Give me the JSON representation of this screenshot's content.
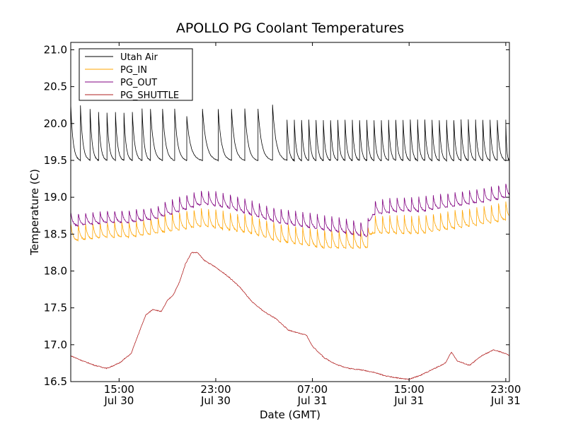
{
  "chart_data": {
    "type": "line",
    "title": "APOLLO PG Coolant Temperatures",
    "xlabel": "Date (GMT)",
    "ylabel": "Temperature (C)",
    "xlim_hours": [
      11.0,
      47.3
    ],
    "ylim": [
      16.5,
      21.1
    ],
    "y_ticks": [
      "16.5",
      "17.0",
      "17.5",
      "18.0",
      "18.5",
      "19.0",
      "19.5",
      "20.0",
      "20.5",
      "21.0"
    ],
    "y_tick_values": [
      16.5,
      17.0,
      17.5,
      18.0,
      18.5,
      19.0,
      19.5,
      20.0,
      20.5,
      21.0
    ],
    "x_ticks": [
      {
        "hour": 15,
        "time": "15:00",
        "date": "Jul 30"
      },
      {
        "hour": 23,
        "time": "23:00",
        "date": "Jul 30"
      },
      {
        "hour": 31,
        "time": "07:00",
        "date": "Jul 31"
      },
      {
        "hour": 39,
        "time": "15:00",
        "date": "Jul 31"
      },
      {
        "hour": 47,
        "time": "23:00",
        "date": "Jul 31"
      }
    ],
    "legend_position": "top-left",
    "series": [
      {
        "name": "Utah Air",
        "color": "#000000",
        "style": "sawtooth",
        "cycles_start_hours": [
          11.0,
          11.8,
          12.6,
          13.3,
          14.0,
          14.7,
          15.4,
          16.1,
          16.9,
          17.6,
          18.6,
          19.6,
          20.6,
          21.9,
          23.2,
          24.3,
          25.4,
          26.5,
          27.7,
          28.9,
          29.5,
          30.1,
          30.7,
          31.3,
          31.9,
          32.5,
          33.1,
          33.7,
          34.3,
          34.9,
          35.5,
          36.1,
          36.7,
          37.3,
          37.9,
          38.5,
          39.1,
          39.7,
          40.3,
          40.9,
          41.5,
          42.1,
          42.7,
          43.3,
          43.9,
          44.5,
          45.1,
          45.7,
          46.3,
          47.0
        ],
        "cycle_peaks": [
          20.25,
          20.25,
          20.2,
          20.15,
          20.15,
          20.15,
          20.15,
          20.15,
          20.2,
          20.2,
          20.2,
          20.2,
          20.1,
          20.2,
          20.2,
          20.2,
          20.2,
          20.2,
          20.25,
          20.05,
          20.05,
          20.05,
          20.05,
          20.05,
          20.05,
          20.05,
          20.05,
          20.05,
          20.05,
          20.05,
          20.05,
          20.05,
          20.05,
          20.05,
          20.05,
          20.05,
          20.05,
          20.05,
          20.05,
          20.05,
          20.05,
          20.05,
          20.05,
          20.05,
          20.05,
          20.05,
          20.05,
          20.05,
          20.05,
          20.05
        ],
        "trough": 19.5
      },
      {
        "name": "PG_IN",
        "color": "#ffa500",
        "style": "sawtooth",
        "baseline_hours": [
          11,
          14,
          16,
          18,
          20,
          22,
          24,
          26,
          28,
          30,
          32,
          34,
          35.5,
          36,
          38,
          40,
          42,
          44,
          46,
          47.3
        ],
        "baseline_lows": [
          18.4,
          18.45,
          18.45,
          18.5,
          18.55,
          18.6,
          18.55,
          18.5,
          18.4,
          18.35,
          18.3,
          18.3,
          18.3,
          18.5,
          18.5,
          18.5,
          18.55,
          18.6,
          18.65,
          18.7
        ],
        "amplitude": 0.25,
        "period_hours": 0.6
      },
      {
        "name": "PG_OUT",
        "color": "#800080",
        "style": "sawtooth",
        "baseline_hours": [
          11,
          14,
          16,
          18,
          20,
          22,
          24,
          26,
          28,
          30,
          32,
          34,
          35.5,
          36,
          38,
          40,
          42,
          44,
          46,
          47.3
        ],
        "baseline_lows": [
          18.6,
          18.65,
          18.65,
          18.7,
          18.8,
          18.9,
          18.85,
          18.75,
          18.65,
          18.6,
          18.55,
          18.5,
          18.45,
          18.75,
          18.8,
          18.8,
          18.85,
          18.9,
          18.95,
          19.0
        ],
        "amplitude": 0.2,
        "period_hours": 0.6
      },
      {
        "name": "PG_SHUTTLE",
        "color": "#b22222",
        "style": "smooth",
        "x_hours": [
          11,
          12,
          13,
          14,
          15,
          16,
          16.5,
          17.2,
          17.8,
          18.5,
          19,
          19.5,
          20,
          20.5,
          21,
          21.5,
          22,
          22.5,
          23,
          24,
          25,
          26,
          27,
          28,
          29,
          30,
          30.5,
          31,
          32,
          33,
          34,
          35,
          36,
          37,
          38,
          39,
          40,
          41,
          42,
          42.5,
          43,
          44,
          45,
          46,
          47,
          47.3
        ],
        "y": [
          16.85,
          16.78,
          16.72,
          16.68,
          16.75,
          16.88,
          17.1,
          17.4,
          17.48,
          17.45,
          17.6,
          17.68,
          17.85,
          18.1,
          18.25,
          18.25,
          18.15,
          18.1,
          18.05,
          17.93,
          17.78,
          17.58,
          17.45,
          17.35,
          17.2,
          17.15,
          17.13,
          16.98,
          16.82,
          16.73,
          16.68,
          16.66,
          16.63,
          16.58,
          16.55,
          16.53,
          16.59,
          16.67,
          16.75,
          16.9,
          16.78,
          16.72,
          16.85,
          16.93,
          16.88,
          16.85
        ]
      }
    ]
  }
}
